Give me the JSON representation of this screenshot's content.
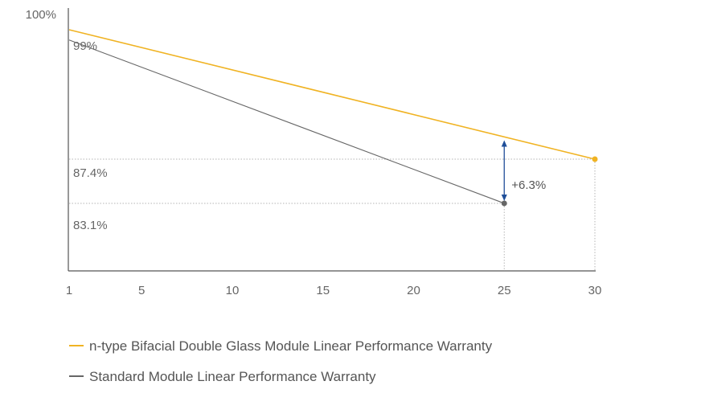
{
  "chart_data": {
    "type": "line",
    "x_ticks": [
      1,
      5,
      10,
      15,
      20,
      25,
      30
    ],
    "xlim": [
      1,
      30
    ],
    "y_top_label": "100%",
    "series": [
      {
        "name": "n-type Bifacial Double Glass Module Linear Performance Warranty",
        "color": "#f0b323",
        "points": [
          [
            1,
            100
          ],
          [
            30,
            87.4
          ]
        ],
        "end_marker": true
      },
      {
        "name": "Standard Module Linear Performance Warranty",
        "color": "#666666",
        "points": [
          [
            1,
            99
          ],
          [
            25,
            83.1
          ]
        ],
        "end_marker": true
      }
    ],
    "point_labels": [
      {
        "text": "99%",
        "x": 1,
        "y": 99
      },
      {
        "text": "87.4%",
        "x": 1,
        "y": 87.4
      },
      {
        "text": "83.1%",
        "x": 1,
        "y": 83.1
      }
    ],
    "reference_lines": [
      {
        "y": 87.4,
        "x_end": 30
      },
      {
        "y": 83.1,
        "x_end": 25
      }
    ],
    "annotation": {
      "text": "+6.3%",
      "x": 25,
      "y_from": 83.1,
      "y_to": 89.4,
      "arrow_color": "#1f4e99"
    }
  }
}
